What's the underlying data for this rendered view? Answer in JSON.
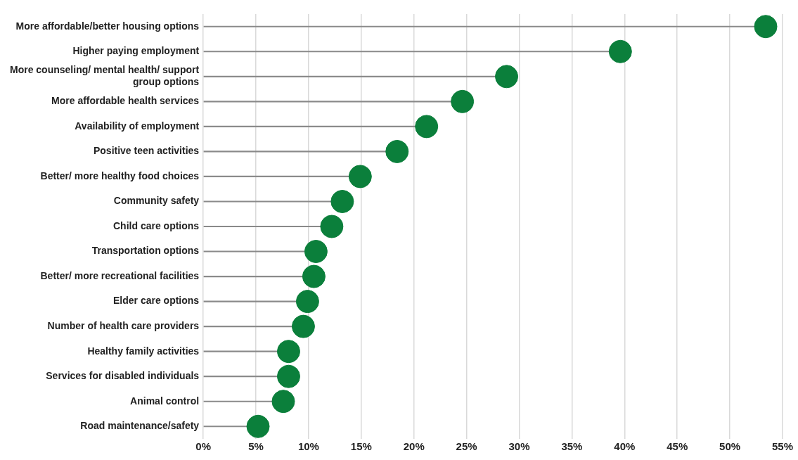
{
  "chart_data": {
    "type": "lollipop",
    "orientation": "horizontal",
    "categories": [
      "More affordable/better housing options",
      "Higher paying employment",
      "More counseling/ mental health/ support group options",
      "More affordable health services",
      "Availability of employment",
      "Positive teen activities",
      "Better/ more healthy food choices",
      "Community safety",
      "Child care options",
      "Transportation options",
      "Better/ more recreational facilities",
      "Elder care options",
      "Number of health care providers",
      "Healthy family activities",
      "Services for disabled individuals",
      "Animal control",
      "Road maintenance/safety"
    ],
    "values": [
      53.4,
      39.6,
      28.8,
      24.6,
      21.2,
      18.4,
      14.9,
      13.2,
      12.2,
      10.7,
      10.5,
      9.9,
      9.5,
      8.1,
      8.1,
      7.6,
      5.2
    ],
    "color": "#0b7f3b",
    "marker": "circle",
    "grid": "x",
    "legend": false,
    "xlim": [
      0,
      55
    ],
    "xticks": [
      {
        "value": 0,
        "label": "0%"
      },
      {
        "value": 5,
        "label": "5%"
      },
      {
        "value": 10,
        "label": "10%"
      },
      {
        "value": 15,
        "label": "15%"
      },
      {
        "value": 20,
        "label": "20%"
      },
      {
        "value": 25,
        "label": "25%"
      },
      {
        "value": 30,
        "label": "30%"
      },
      {
        "value": 35,
        "label": "35%"
      },
      {
        "value": 40,
        "label": "40%"
      },
      {
        "value": 45,
        "label": "45%"
      },
      {
        "value": 50,
        "label": "50%"
      },
      {
        "value": 55,
        "label": "55%"
      }
    ]
  }
}
